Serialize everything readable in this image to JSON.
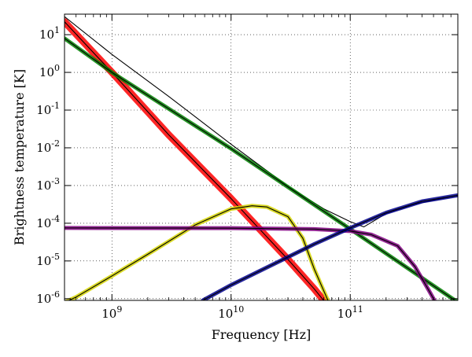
{
  "chart_data": {
    "type": "line",
    "title": "",
    "xlabel": "Frequency [Hz]",
    "ylabel": "Brightness temperature [K]",
    "xscale": "log",
    "yscale": "log",
    "xlim": [
      400000000.0,
      800000000000.0
    ],
    "ylim": [
      9e-07,
      35
    ],
    "grid": true,
    "legend": "none",
    "x_ticks": [
      {
        "value": 1000000000.0,
        "label": "10^9"
      },
      {
        "value": 10000000000.0,
        "label": "10^10"
      },
      {
        "value": 100000000000.0,
        "label": "10^11"
      }
    ],
    "y_ticks": [
      {
        "value": 1e-06,
        "label": "10^-6"
      },
      {
        "value": 1e-05,
        "label": "10^-5"
      },
      {
        "value": 0.0001,
        "label": "10^-4"
      },
      {
        "value": 0.001,
        "label": "10^-3"
      },
      {
        "value": 0.01,
        "label": "10^-2"
      },
      {
        "value": 0.1,
        "label": "10^-1"
      },
      {
        "value": 1,
        "label": "10^0"
      },
      {
        "value": 10,
        "label": "10^1"
      }
    ],
    "series": [
      {
        "color": "#000000",
        "band": null,
        "x": [
          400000000.0,
          1000000000.0,
          3000000000.0,
          10000000000.0,
          30000000000.0,
          60000000000.0,
          100000000000.0,
          130000000000.0,
          200000000000.0,
          350000000000.0,
          800000000000.0
        ],
        "y": [
          30,
          3.0,
          0.23,
          0.0124,
          0.00095,
          0.00024,
          0.00011,
          8e-05,
          0.00018,
          0.00032,
          0.00055
        ]
      },
      {
        "color": "#000000",
        "band": "#ff0000",
        "x": [
          400000000.0,
          1000000000.0,
          3000000000.0,
          10000000000.0,
          30000000000.0,
          50000000000.0,
          65000000000.0
        ],
        "y": [
          22,
          1.0,
          0.022,
          0.00045,
          1.1e-05,
          1.8e-06,
          6.5e-07
        ]
      },
      {
        "color": "#000000",
        "band": "#008000",
        "x": [
          400000000.0,
          1000000000.0,
          10000000000.0,
          100000000000.0,
          800000000000.0
        ],
        "y": [
          8.0,
          1.0,
          0.0095,
          7e-05,
          8e-07
        ]
      },
      {
        "color": "#000000",
        "band": "#d4d400",
        "x": [
          400000000.0,
          500000000.0,
          1000000000.0,
          2000000000.0,
          5000000000.0,
          10000000000.0,
          15000000000.0,
          20000000000.0,
          30000000000.0,
          40000000000.0,
          50000000000.0,
          65000000000.0
        ],
        "y": [
          8e-07,
          1.1e-06,
          4e-06,
          1.5e-05,
          9e-05,
          0.00024,
          0.00029,
          0.00027,
          0.00015,
          4e-05,
          6e-06,
          9e-07
        ]
      },
      {
        "color": "#000000",
        "band": "#800080",
        "x": [
          400000000.0,
          10000000000.0,
          50000000000.0,
          100000000000.0,
          150000000000.0,
          250000000000.0,
          350000000000.0,
          450000000000.0,
          520000000000.0
        ],
        "y": [
          7.5e-05,
          7.4e-05,
          7e-05,
          6.2e-05,
          5e-05,
          2.5e-05,
          7e-06,
          1.8e-06,
          8e-07
        ]
      },
      {
        "color": "#000000",
        "band": "#00008b",
        "x": [
          5800000000.0,
          10000000000.0,
          50000000000.0,
          100000000000.0,
          200000000000.0,
          400000000000.0,
          800000000000.0
        ],
        "y": [
          9e-07,
          2.3e-06,
          2.8e-05,
          7.5e-05,
          0.00019,
          0.00038,
          0.00055
        ]
      }
    ]
  }
}
